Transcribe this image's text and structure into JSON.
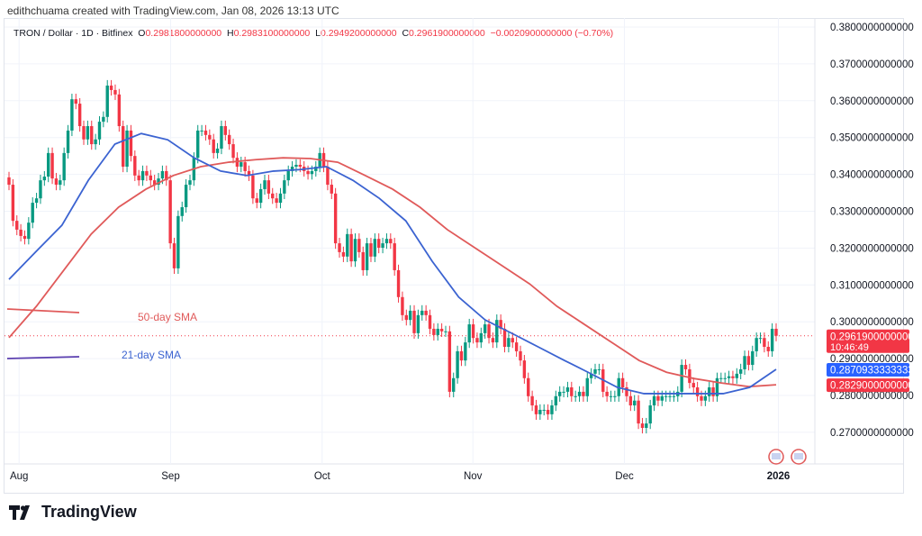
{
  "credit": "edithchuama created with TradingView.com, Jan 08, 2026 13:13 UTC",
  "legend": {
    "symbol": "TRON / Dollar · 1D · Bitfinex",
    "o_label": "O",
    "o": "0.2981800000000",
    "h_label": "H",
    "h": "0.2983100000000",
    "l_label": "L",
    "l": "0.2949200000000",
    "c_label": "C",
    "c": "0.2961900000000",
    "change": "−0.0020900000000 (−0.70%)"
  },
  "brand": "TradingView",
  "chart_data": {
    "type": "candlestick",
    "colors": {
      "up": "#089981",
      "down": "#f23645",
      "sma21": "#3b63d1",
      "sma50": "#e05a5a"
    },
    "ylim": [
      0.265,
      0.382
    ],
    "y_ticks": [
      "0.3800000000000",
      "0.3700000000000",
      "0.3600000000000",
      "0.3500000000000",
      "0.3400000000000",
      "0.3300000000000",
      "0.3200000000000",
      "0.3100000000000",
      "0.3000000000000",
      "0.2900000000000",
      "0.2800000000000",
      "0.2700000000000"
    ],
    "y_tick_values": [
      0.38,
      0.37,
      0.36,
      0.35,
      0.34,
      0.33,
      0.32,
      0.31,
      0.3,
      0.29,
      0.28,
      0.27
    ],
    "x_ticks": [
      "Aug",
      "Sep",
      "Oct",
      "Nov",
      "Dec",
      "2026"
    ],
    "x_tick_fraction": [
      0.018,
      0.205,
      0.392,
      0.578,
      0.765,
      0.955
    ],
    "close": [
      0.3372,
      0.3274,
      0.325,
      0.3233,
      0.3225,
      0.3269,
      0.3323,
      0.3335,
      0.3384,
      0.3394,
      0.3458,
      0.3389,
      0.3372,
      0.3384,
      0.3458,
      0.3519,
      0.3604,
      0.3592,
      0.3531,
      0.3495,
      0.3531,
      0.3482,
      0.3495,
      0.3543,
      0.3556,
      0.3641,
      0.3629,
      0.3617,
      0.3531,
      0.3421,
      0.3519,
      0.345,
      0.3397,
      0.3384,
      0.3409,
      0.3397,
      0.3384,
      0.3372,
      0.3389,
      0.3409,
      0.3384,
      0.3213,
      0.3145,
      0.3287,
      0.3311,
      0.3372,
      0.3384,
      0.3445,
      0.3519,
      0.3519,
      0.3507,
      0.3495,
      0.3458,
      0.347,
      0.3531,
      0.3507,
      0.3482,
      0.3445,
      0.3421,
      0.3433,
      0.3409,
      0.3397,
      0.3335,
      0.3323,
      0.336,
      0.3384,
      0.3348,
      0.3335,
      0.3323,
      0.3348,
      0.3384,
      0.3409,
      0.3421,
      0.3426,
      0.3421,
      0.3409,
      0.3401,
      0.3409,
      0.3421,
      0.3458,
      0.3421,
      0.3372,
      0.3348,
      0.3213,
      0.3189,
      0.3177,
      0.3238,
      0.3164,
      0.3225,
      0.3189,
      0.314,
      0.3213,
      0.3177,
      0.3225,
      0.3201,
      0.3213,
      0.3225,
      0.3213,
      0.314,
      0.3067,
      0.3018,
      0.3005,
      0.303,
      0.2969,
      0.3018,
      0.303,
      0.3018,
      0.2981,
      0.2964,
      0.2981,
      0.2974,
      0.2974,
      0.281,
      0.2847,
      0.292,
      0.2895,
      0.2944,
      0.2993,
      0.2956,
      0.2944,
      0.2969,
      0.2993,
      0.2956,
      0.2944,
      0.3005,
      0.2981,
      0.2932,
      0.2956,
      0.2944,
      0.292,
      0.2895,
      0.2847,
      0.2798,
      0.2773,
      0.2749,
      0.2761,
      0.2761,
      0.2749,
      0.2773,
      0.2798,
      0.281,
      0.281,
      0.2822,
      0.2798,
      0.2798,
      0.281,
      0.2798,
      0.2847,
      0.2859,
      0.2871,
      0.2871,
      0.281,
      0.2798,
      0.2798,
      0.2798,
      0.2847,
      0.2822,
      0.2798,
      0.2773,
      0.2786,
      0.2724,
      0.2712,
      0.2724,
      0.2773,
      0.2798,
      0.2786,
      0.2798,
      0.2798,
      0.2798,
      0.2798,
      0.281,
      0.2883,
      0.2871,
      0.2834,
      0.2822,
      0.2798,
      0.2786,
      0.2798,
      0.2822,
      0.2798,
      0.2847,
      0.2847,
      0.2847,
      0.2852,
      0.2847,
      0.2859,
      0.2871,
      0.2907,
      0.2883,
      0.292,
      0.2956,
      0.2956,
      0.2932,
      0.292,
      0.2981,
      0.2962
    ],
    "sma21": [
      0.3115,
      0.3189,
      0.3262,
      0.3384,
      0.3482,
      0.3511,
      0.3494,
      0.3445,
      0.3409,
      0.3397,
      0.3409,
      0.3413,
      0.3421,
      0.3384,
      0.3335,
      0.3274,
      0.3164,
      0.3067,
      0.3005,
      0.2969,
      0.2932,
      0.2895,
      0.2859,
      0.2822,
      0.2805,
      0.2805,
      0.2805,
      0.2805,
      0.2822,
      0.2871
    ],
    "sma50": [
      0.2957,
      0.3042,
      0.314,
      0.3238,
      0.3311,
      0.336,
      0.3397,
      0.3421,
      0.3433,
      0.344,
      0.3445,
      0.3443,
      0.3433,
      0.3397,
      0.336,
      0.3311,
      0.325,
      0.3201,
      0.3152,
      0.3103,
      0.3042,
      0.2993,
      0.2944,
      0.2895,
      0.2863,
      0.2846,
      0.2834,
      0.2824,
      0.2829
    ],
    "annotations": {
      "sma50_label": "50-day SMA",
      "sma21_label": "21-day SMA"
    },
    "last_price": {
      "value": 0.29619,
      "label": "0.2961900000000",
      "countdown": "10:46:49"
    },
    "sma21_tag": {
      "value": 0.2870933,
      "label": "0.2870933333333"
    },
    "sma50_tag": {
      "value": 0.2829,
      "label": "0.2829000000000"
    }
  }
}
